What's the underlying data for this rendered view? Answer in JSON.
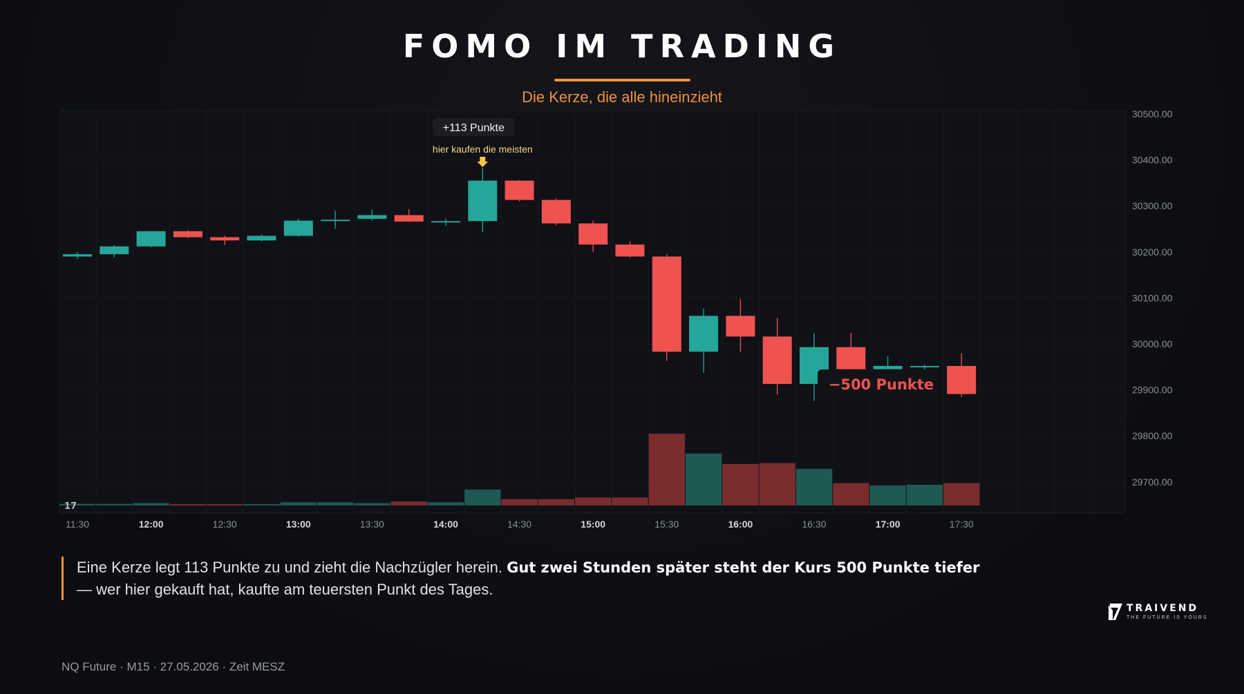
{
  "header": {
    "title": "FOMO IM TRADING",
    "subtitle": "Die Kerze, die alle hineinzieht"
  },
  "colors": {
    "bull": "#26a69a",
    "bear": "#ef5350",
    "bull_volume": "#1e5a53",
    "bear_volume": "#7a2c2f",
    "accent": "#f0913a",
    "annotation": "#f5c642"
  },
  "chart_data": {
    "type": "candlestick",
    "x": [
      "11:30",
      "11:45",
      "12:00",
      "12:15",
      "12:30",
      "12:45",
      "13:00",
      "13:15",
      "13:30",
      "13:45",
      "14:00",
      "14:15",
      "14:30",
      "14:45",
      "15:00",
      "15:15",
      "15:30",
      "15:45",
      "16:00",
      "16:15",
      "16:30",
      "16:45",
      "17:00",
      "17:15",
      "17:30"
    ],
    "candles": [
      {
        "o": 30190,
        "h": 30200,
        "l": 30185,
        "c": 30195
      },
      {
        "o": 30195,
        "h": 30215,
        "l": 30188,
        "c": 30212
      },
      {
        "o": 30212,
        "h": 30245,
        "l": 30210,
        "c": 30245
      },
      {
        "o": 30245,
        "h": 30247,
        "l": 30230,
        "c": 30232
      },
      {
        "o": 30232,
        "h": 30235,
        "l": 30215,
        "c": 30225
      },
      {
        "o": 30225,
        "h": 30238,
        "l": 30223,
        "c": 30235
      },
      {
        "o": 30235,
        "h": 30272,
        "l": 30233,
        "c": 30268
      },
      {
        "o": 30268,
        "h": 30290,
        "l": 30250,
        "c": 30270
      },
      {
        "o": 30272,
        "h": 30292,
        "l": 30268,
        "c": 30280
      },
      {
        "o": 30280,
        "h": 30293,
        "l": 30265,
        "c": 30266
      },
      {
        "o": 30266,
        "h": 30273,
        "l": 30257,
        "c": 30267
      },
      {
        "o": 30267,
        "h": 30383,
        "l": 30243,
        "c": 30355
      },
      {
        "o": 30355,
        "h": 30356,
        "l": 30310,
        "c": 30313
      },
      {
        "o": 30313,
        "h": 30316,
        "l": 30258,
        "c": 30262
      },
      {
        "o": 30262,
        "h": 30268,
        "l": 30200,
        "c": 30216
      },
      {
        "o": 30216,
        "h": 30223,
        "l": 30188,
        "c": 30190
      },
      {
        "o": 30190,
        "h": 30195,
        "l": 29963,
        "c": 29983
      },
      {
        "o": 29983,
        "h": 30077,
        "l": 29937,
        "c": 30061
      },
      {
        "o": 30061,
        "h": 30098,
        "l": 29983,
        "c": 30016
      },
      {
        "o": 30016,
        "h": 30056,
        "l": 29890,
        "c": 29913
      },
      {
        "o": 29913,
        "h": 30023,
        "l": 29876,
        "c": 29993
      },
      {
        "o": 29993,
        "h": 30024,
        "l": 29941,
        "c": 29945
      },
      {
        "o": 29945,
        "h": 29973,
        "l": 29936,
        "c": 29952
      },
      {
        "o": 29950,
        "h": 29955,
        "l": 29940,
        "c": 29952
      },
      {
        "o": 29952,
        "h": 29980,
        "l": 29885,
        "c": 29891
      }
    ],
    "volume": [
      2,
      2,
      3,
      1,
      1,
      1,
      4,
      4,
      3,
      5,
      4,
      20,
      8,
      8,
      10,
      10,
      90,
      65,
      52,
      53,
      46,
      28,
      25,
      26,
      28
    ],
    "volume_max": 90,
    "ylim": [
      29645,
      30500
    ],
    "y_ticks": [
      "29700.00",
      "29800.00",
      "29900.00",
      "30000.00",
      "30100.00",
      "30200.00",
      "30300.00",
      "30400.00",
      "30500.00"
    ],
    "x_ticks": [
      {
        "label": "11:30",
        "bold": false
      },
      {
        "label": "12:00",
        "bold": true
      },
      {
        "label": "12:30",
        "bold": false
      },
      {
        "label": "13:00",
        "bold": true
      },
      {
        "label": "13:30",
        "bold": false
      },
      {
        "label": "14:00",
        "bold": true
      },
      {
        "label": "14:30",
        "bold": false
      },
      {
        "label": "15:00",
        "bold": true
      },
      {
        "label": "15:30",
        "bold": false
      },
      {
        "label": "16:00",
        "bold": true
      },
      {
        "label": "16:30",
        "bold": false
      },
      {
        "label": "17:00",
        "bold": true
      },
      {
        "label": "17:30",
        "bold": false
      }
    ],
    "annotations": {
      "up_label": "+113 Punkte",
      "buy_note": "hier kaufen die meisten",
      "down_label": "−500 Punkte"
    },
    "corner_logo": "17"
  },
  "caption": {
    "normal_1": "Eine Kerze legt 113 Punkte zu und zieht die Nachzügler herein. ",
    "bold": "Gut zwei Stunden später steht der Kurs 500 Punkte tiefer",
    "normal_2": " — wer hier gekauft hat, kaufte am teuersten Punkt des Tages."
  },
  "footer": {
    "text": "NQ Future · M15 · 27.05.2026 · Zeit MESZ"
  },
  "brand": {
    "name": "TRAIVEND",
    "tagline": "THE FUTURE IS YOURS"
  }
}
